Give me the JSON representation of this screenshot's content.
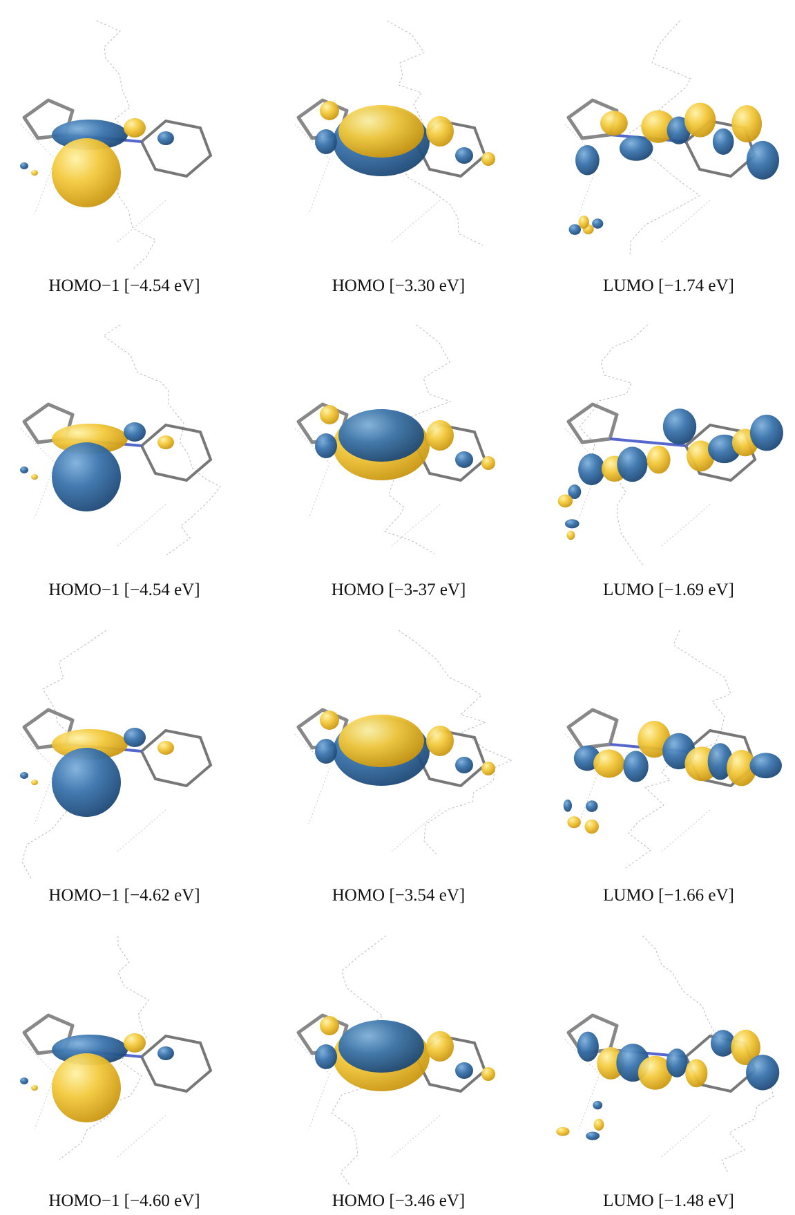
{
  "figure": {
    "rows": [
      [
        "HOMO−1 [−4.54 eV]",
        "HOMO [−3.30 eV]",
        "LUMO [−1.74 eV]"
      ],
      [
        "HOMO−1 [−4.54 eV]",
        "HOMO [−3-37 eV]",
        "LUMO [−1.69 eV]"
      ],
      [
        "HOMO−1 [−4.62 eV]",
        "HOMO [−3.54 eV]",
        "LUMO [−1.66 eV]"
      ],
      [
        "HOMO−1 [−4.60 eV]",
        "HOMO [−3.46 eV]",
        "LUMO [−1.48 eV]"
      ]
    ]
  }
}
